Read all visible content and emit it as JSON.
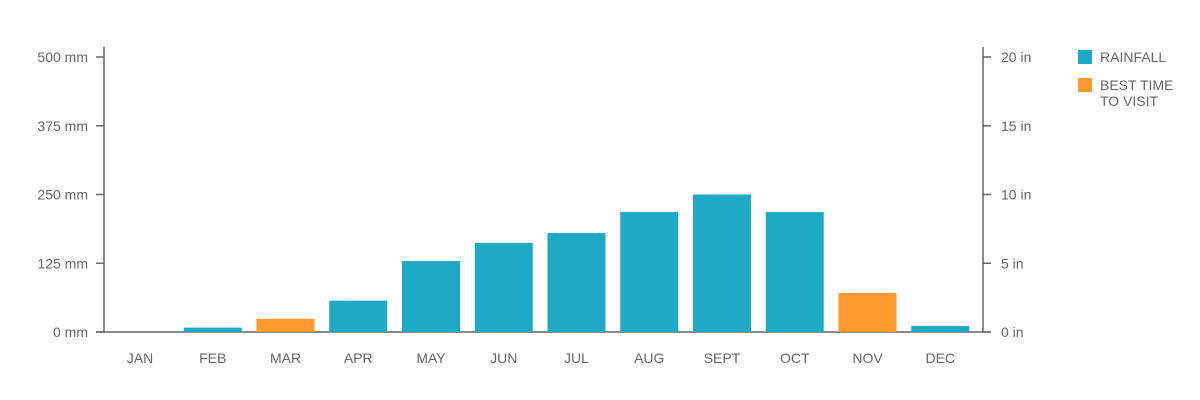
{
  "chart_data": {
    "type": "bar",
    "categories": [
      "JAN",
      "FEB",
      "MAR",
      "APR",
      "MAY",
      "JUN",
      "JUL",
      "AUG",
      "SEPT",
      "OCT",
      "NOV",
      "DEC"
    ],
    "series": [
      {
        "values": [
          0,
          8,
          24,
          57,
          129,
          162,
          180,
          218,
          250,
          218,
          71,
          11
        ],
        "highlight": [
          false,
          false,
          true,
          false,
          false,
          false,
          false,
          false,
          false,
          false,
          true,
          false
        ]
      }
    ],
    "ylim": [
      0,
      500
    ],
    "y_ticks": [
      {
        "value": 0,
        "label": "0 mm"
      },
      {
        "value": 125,
        "label": "125 mm"
      },
      {
        "value": 250,
        "label": "250 mm"
      },
      {
        "value": 375,
        "label": "375 mm"
      },
      {
        "value": 500,
        "label": "500 mm"
      }
    ],
    "y2_ticks": [
      {
        "value": 0,
        "label": "0 in"
      },
      {
        "value": 5,
        "label": "5 in"
      },
      {
        "value": 10,
        "label": "10 in"
      },
      {
        "value": 15,
        "label": "15 in"
      },
      {
        "value": 20,
        "label": "20 in"
      }
    ],
    "y2lim": [
      0,
      20
    ],
    "grid": false,
    "legend_position": "top-right",
    "legend": [
      {
        "key": "rainfall",
        "label_lines": [
          "RAINFALL"
        ],
        "color": "#1eaac4"
      },
      {
        "key": "best",
        "label_lines": [
          "BEST TIME",
          "TO VISIT"
        ],
        "color": "#ff9a2e"
      }
    ],
    "colors": {
      "bar": "#1eaac4",
      "highlight": "#ff9a2e",
      "axis": "#666666"
    }
  }
}
